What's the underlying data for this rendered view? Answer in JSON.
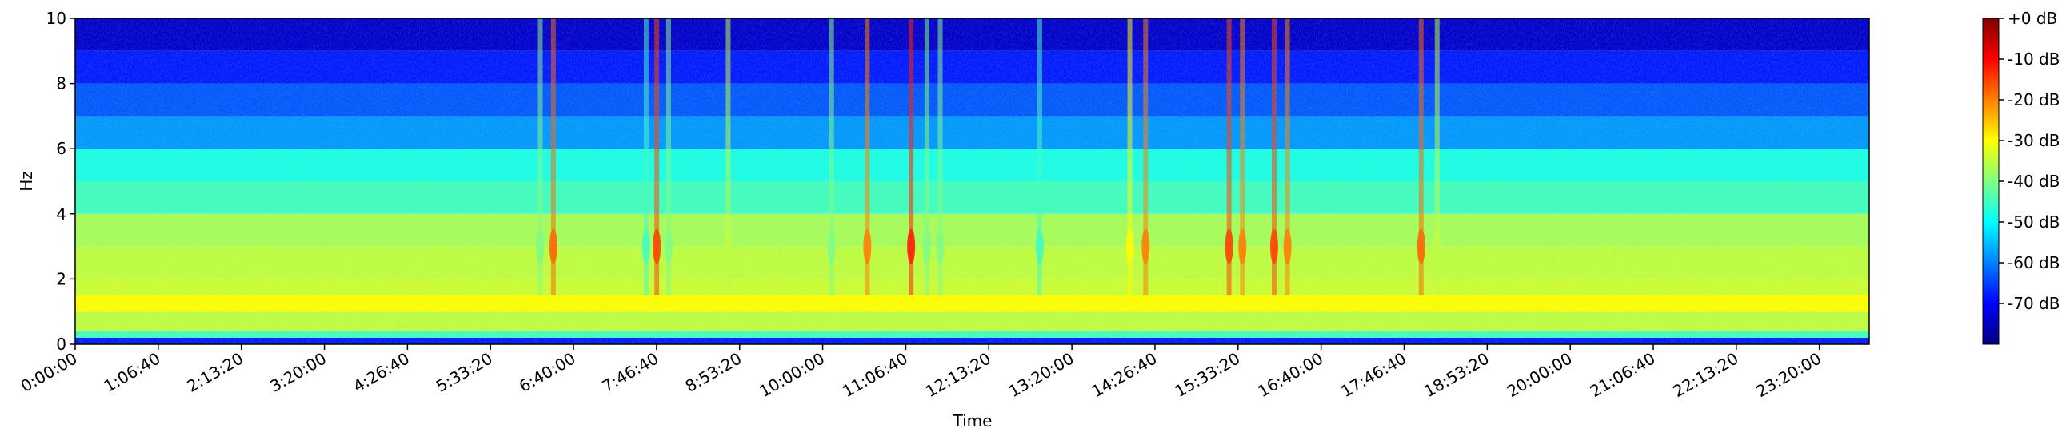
{
  "chart_data": {
    "type": "spectrogram",
    "xlabel": "Time",
    "ylabel": "Hz",
    "xlim": [
      0,
      86400
    ],
    "ylim": [
      0,
      10
    ],
    "xticks": [
      {
        "value": 0,
        "label": "0:00:00"
      },
      {
        "value": 4000,
        "label": "1:06:40"
      },
      {
        "value": 8000,
        "label": "2:13:20"
      },
      {
        "value": 12000,
        "label": "3:20:00"
      },
      {
        "value": 16000,
        "label": "4:26:40"
      },
      {
        "value": 20000,
        "label": "5:33:20"
      },
      {
        "value": 24000,
        "label": "6:40:00"
      },
      {
        "value": 28000,
        "label": "7:46:40"
      },
      {
        "value": 32000,
        "label": "8:53:20"
      },
      {
        "value": 36000,
        "label": "10:00:00"
      },
      {
        "value": 40000,
        "label": "11:06:40"
      },
      {
        "value": 44000,
        "label": "12:13:20"
      },
      {
        "value": 48000,
        "label": "13:20:00"
      },
      {
        "value": 52000,
        "label": "14:26:40"
      },
      {
        "value": 56000,
        "label": "15:33:20"
      },
      {
        "value": 60000,
        "label": "16:40:00"
      },
      {
        "value": 64000,
        "label": "17:46:40"
      },
      {
        "value": 68000,
        "label": "18:53:20"
      },
      {
        "value": 72000,
        "label": "20:00:00"
      },
      {
        "value": 76000,
        "label": "21:06:40"
      },
      {
        "value": 80000,
        "label": "22:13:20"
      },
      {
        "value": 84000,
        "label": "23:20:00"
      }
    ],
    "yticks": [
      0,
      2,
      4,
      6,
      8,
      10
    ],
    "freq_bins": [
      0,
      0.2,
      0.4,
      1,
      1.5,
      2,
      3,
      4,
      5,
      6,
      7,
      8,
      9,
      10
    ],
    "levels": [
      -68,
      -45,
      -35,
      -30,
      -34,
      -35,
      -37,
      -45,
      -48,
      -58,
      -63,
      -68,
      -74
    ],
    "events": {
      "times": [
        22400,
        23030,
        27500,
        28010,
        28580,
        31450,
        36430,
        38150,
        40260,
        41020,
        41660,
        46450,
        50790,
        51550,
        55570,
        56210,
        57740,
        58380,
        64820,
        65590
      ],
      "levels": [
        -40,
        -18,
        -45,
        -15,
        -40,
        -35,
        -40,
        -20,
        -12,
        -40,
        -40,
        -45,
        -30,
        -20,
        -15,
        -20,
        -15,
        -20,
        -18,
        -35
      ]
    },
    "colorbar": {
      "clim": [
        -80,
        0
      ],
      "ticks": [
        {
          "value": 0,
          "label": "+0 dB"
        },
        {
          "value": -10,
          "label": "-10 dB"
        },
        {
          "value": -20,
          "label": "-20 dB"
        },
        {
          "value": -30,
          "label": "-30 dB"
        },
        {
          "value": -40,
          "label": "-40 dB"
        },
        {
          "value": -50,
          "label": "-50 dB"
        },
        {
          "value": -60,
          "label": "-60 dB"
        },
        {
          "value": -70,
          "label": "-70 dB"
        }
      ]
    }
  }
}
